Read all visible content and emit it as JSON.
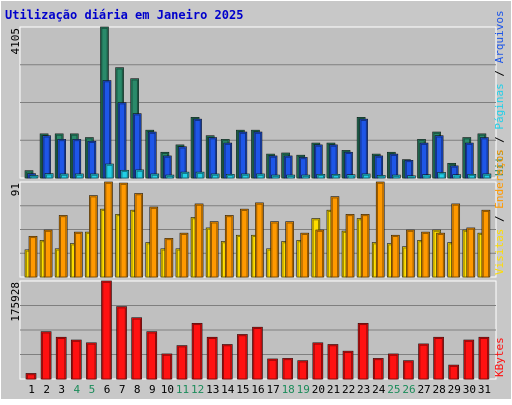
{
  "chart_data": {
    "type": "bar",
    "title": "Utilização diária em Janeiro 2025",
    "categories": [
      "1",
      "2",
      "3",
      "4",
      "5",
      "6",
      "7",
      "8",
      "9",
      "10",
      "11",
      "12",
      "13",
      "14",
      "15",
      "16",
      "17",
      "18",
      "19",
      "20",
      "21",
      "22",
      "23",
      "24",
      "25",
      "26",
      "27",
      "28",
      "29",
      "30",
      "31"
    ],
    "weekend_days": [
      "4",
      "5",
      "11",
      "12",
      "18",
      "19",
      "25",
      "26"
    ],
    "panels": [
      {
        "key": "hits",
        "ymax_label": "4105",
        "ymax": 4105,
        "legend": [
          "Hits",
          "Páginas",
          "Arquivos"
        ],
        "series": [
          {
            "name": "Hits",
            "color": "#2a8a6a",
            "values": [
              200,
              1200,
              1200,
              1200,
              1100,
              4105,
              3000,
              2700,
              1300,
              700,
              900,
              1650,
              1150,
              1050,
              1300,
              1300,
              650,
              680,
              620,
              950,
              950,
              750,
              1650,
              650,
              700,
              500,
              1050,
              1250,
              400,
              1100,
              1200
            ]
          },
          {
            "name": "Arquivos",
            "color": "#1e56e8",
            "values": [
              120,
              1150,
              1050,
              1050,
              1000,
              2650,
              2050,
              1750,
              1250,
              600,
              850,
              1600,
              1100,
              950,
              1250,
              1250,
              600,
              600,
              560,
              900,
              900,
              700,
              1600,
              600,
              650,
              480,
              950,
              1150,
              330,
              950,
              1100
            ]
          },
          {
            "name": "Páginas",
            "color": "#22d0e8",
            "values": [
              70,
              120,
              110,
              110,
              110,
              380,
              210,
              220,
              110,
              80,
              160,
              160,
              110,
              100,
              110,
              110,
              80,
              80,
              80,
              100,
              100,
              90,
              110,
              70,
              80,
              60,
              90,
              150,
              90,
              100,
              110
            ]
          }
        ]
      },
      {
        "key": "visits",
        "ymax_label": "91",
        "ymax": 91,
        "legend": [
          "Visitas",
          "Endereços"
        ],
        "series": [
          {
            "name": "Visitas",
            "color": "#ffdd00",
            "values": [
              26,
              35,
              27,
              32,
              43,
              65,
              60,
              64,
              33,
              27,
              27,
              57,
              47,
              34,
              40,
              40,
              27,
              34,
              35,
              56,
              64,
              44,
              56,
              33,
              32,
              29,
              35,
              45,
              33,
              45,
              42
            ]
          },
          {
            "name": "Endereços",
            "color": "#ff9900",
            "values": [
              39,
              45,
              59,
              43,
              78,
              91,
              90,
              80,
              67,
              37,
              42,
              70,
              53,
              59,
              65,
              71,
              53,
              53,
              42,
              45,
              77,
              60,
              60,
              91,
              40,
              45,
              43,
              42,
              70,
              47,
              64
            ]
          }
        ]
      },
      {
        "key": "kbytes",
        "ymax_label": "175928",
        "ymax": 175928,
        "legend": [
          "KBytes"
        ],
        "series": [
          {
            "name": "KBytes",
            "color": "#ff1111",
            "values": [
              10000,
              85000,
              75000,
              70000,
              65000,
              175928,
              130000,
              110000,
              85000,
              45000,
              60000,
              100000,
              75000,
              62000,
              80000,
              93000,
              36000,
              37000,
              33000,
              65000,
              62000,
              50000,
              100000,
              37000,
              45000,
              33000,
              63000,
              75000,
              25000,
              70000,
              75000
            ]
          }
        ]
      }
    ]
  }
}
